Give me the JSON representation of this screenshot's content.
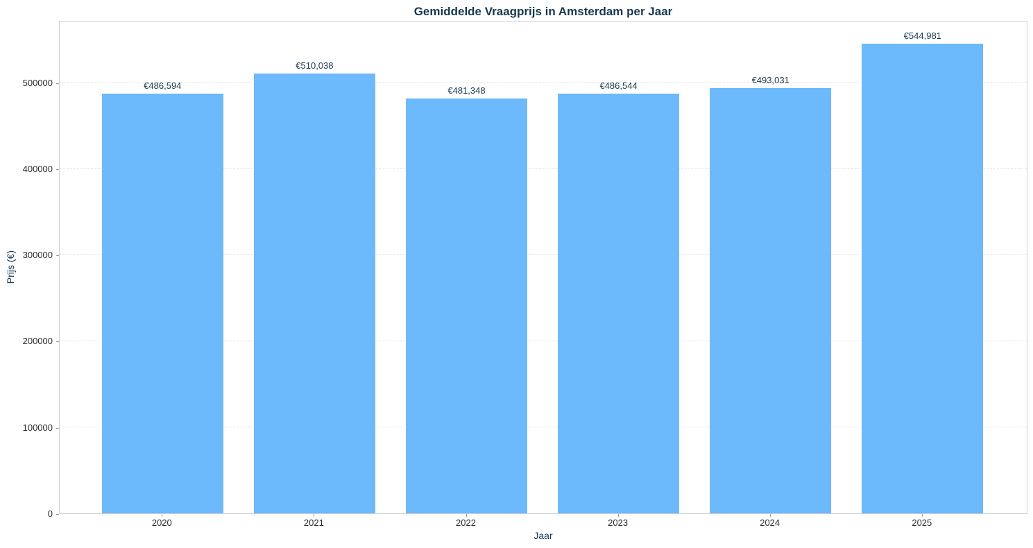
{
  "chart_data": {
    "type": "bar",
    "title": "Gemiddelde Vraagprijs in Amsterdam per Jaar",
    "xlabel": "Jaar",
    "ylabel": "Prijs (€)",
    "categories": [
      "2020",
      "2021",
      "2022",
      "2023",
      "2024",
      "2025"
    ],
    "values": [
      486594,
      510038,
      481348,
      486544,
      493031,
      544981
    ],
    "value_labels": [
      "€486,594",
      "€510,038",
      "€481,348",
      "€486,544",
      "€493,031",
      "€544,981"
    ],
    "yticks": [
      0,
      100000,
      200000,
      300000,
      400000,
      500000
    ],
    "ytick_labels": [
      "0",
      "100000",
      "200000",
      "300000",
      "400000",
      "500000"
    ],
    "ylim": [
      0,
      572230
    ],
    "grid": {
      "axis": "y",
      "style": "dashed",
      "on": true
    },
    "legend": {
      "shown": false
    },
    "colors": {
      "bar": "#6cb9fc",
      "title": "#17374e",
      "axis_label": "#17374e",
      "value_label": "#17374e",
      "tick_label": "#2b2b2b",
      "grid_line": "#e3e3e3",
      "spine": "#cfcfcf",
      "background": "#ffffff"
    }
  }
}
